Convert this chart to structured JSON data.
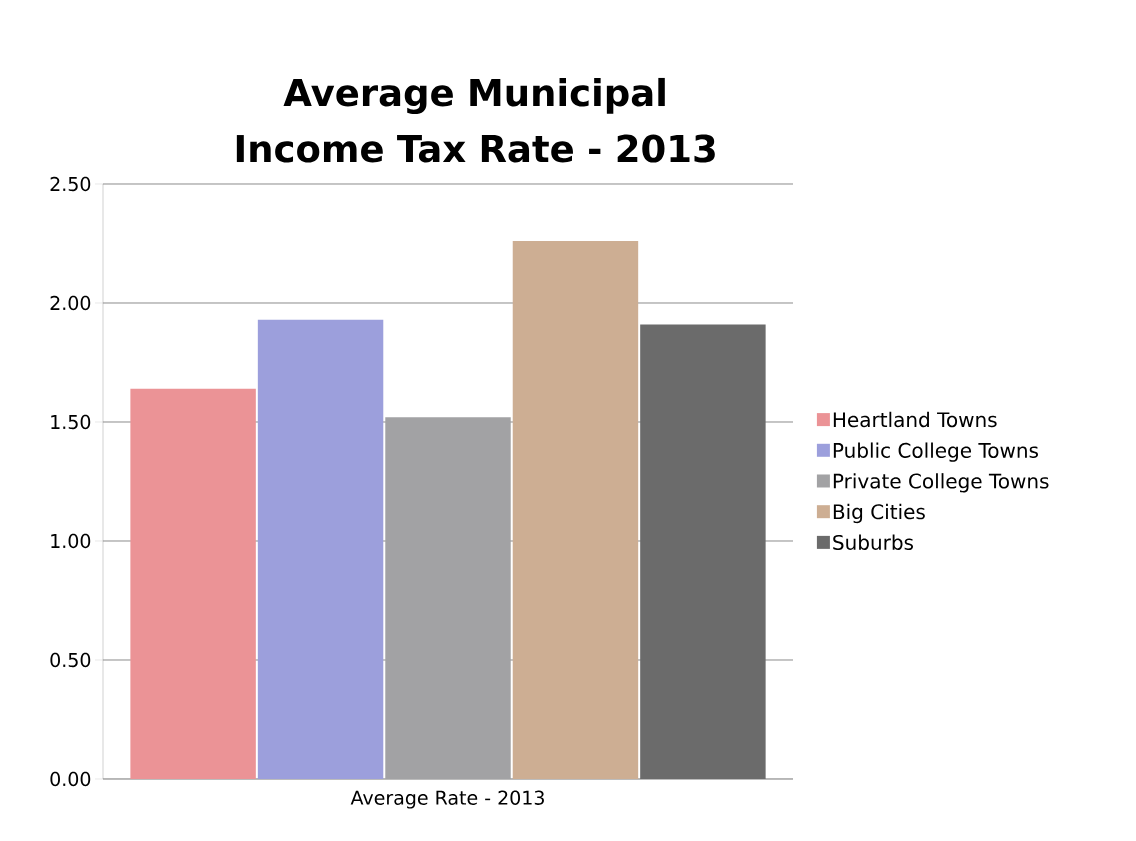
{
  "chart_data": {
    "type": "bar",
    "title": "Average Municipal Income Tax Rate - 2013",
    "categories": [
      "Average Rate - 2013"
    ],
    "series": [
      {
        "name": "Heartland Towns",
        "color": "#eb9396",
        "values": [
          1.64
        ]
      },
      {
        "name": "Public College Towns",
        "color": "#9c9fdc",
        "values": [
          1.93
        ]
      },
      {
        "name": "Private College Towns",
        "color": "#a2a2a4",
        "values": [
          1.52
        ]
      },
      {
        "name": "Big Cities",
        "color": "#cdae93",
        "values": [
          2.26
        ]
      },
      {
        "name": "Suburbs",
        "color": "#6b6b6b",
        "values": [
          1.91
        ]
      }
    ],
    "ylim": [
      0,
      2.5
    ],
    "yticks": [
      {
        "value": 0,
        "label": "0.00"
      },
      {
        "value": 0.5,
        "label": "0.50"
      },
      {
        "value": 1,
        "label": "1.00"
      },
      {
        "value": 1.5,
        "label": "1.50"
      },
      {
        "value": 2,
        "label": "2.00"
      },
      {
        "value": 2.5,
        "label": "2.50"
      }
    ],
    "grid": "y",
    "legend": "right"
  }
}
